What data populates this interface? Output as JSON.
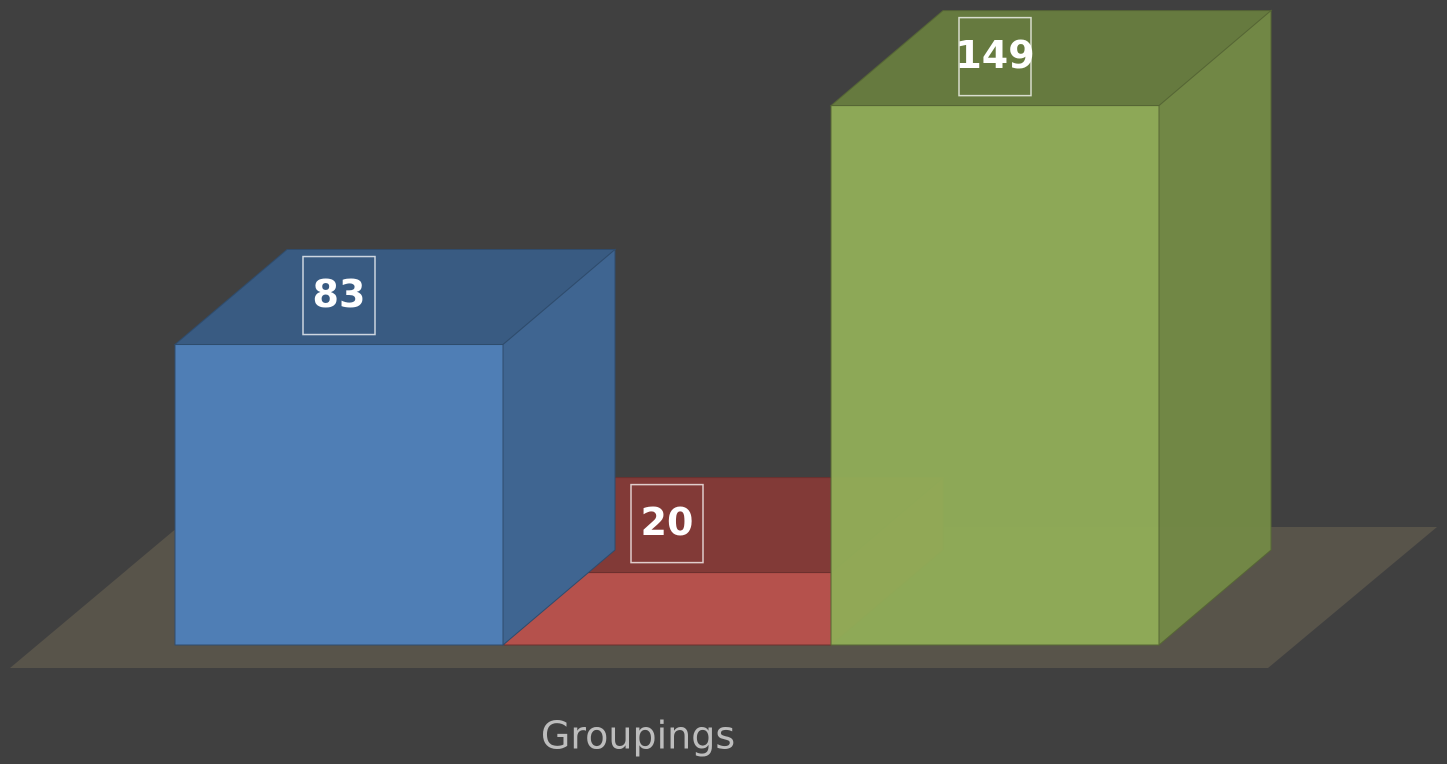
{
  "chart_data": {
    "type": "bar3d",
    "categories": [
      "Groupings"
    ],
    "series": [
      {
        "color": "#4f7eb5",
        "values": [
          83
        ]
      },
      {
        "color": "#b5514c",
        "values": [
          20
        ]
      },
      {
        "color": "#91ad58",
        "values": [
          149
        ]
      }
    ]
  }
}
